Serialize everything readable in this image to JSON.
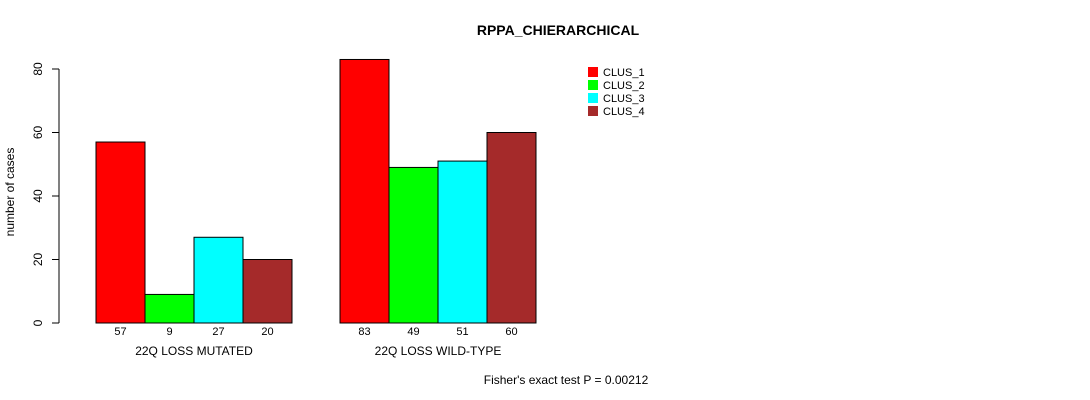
{
  "chart_data": {
    "type": "bar",
    "title": "RPPA_CHIERARCHICAL",
    "ylabel": "number of cases",
    "xlabel": "",
    "ylim": [
      0,
      80
    ],
    "yticks": [
      0,
      20,
      40,
      60,
      80
    ],
    "groups": [
      "22Q LOSS MUTATED",
      "22Q LOSS WILD-TYPE"
    ],
    "series": [
      {
        "name": "CLUS_1",
        "color": "#ff0000",
        "values": [
          57,
          83
        ]
      },
      {
        "name": "CLUS_2",
        "color": "#00ff00",
        "values": [
          9,
          49
        ]
      },
      {
        "name": "CLUS_3",
        "color": "#00ffff",
        "values": [
          27,
          51
        ]
      },
      {
        "name": "CLUS_4",
        "color": "#a52a2a",
        "values": [
          20,
          60
        ]
      }
    ],
    "legend_position": "top-right",
    "footnote": "Fisher's exact test P = 0.00212"
  }
}
